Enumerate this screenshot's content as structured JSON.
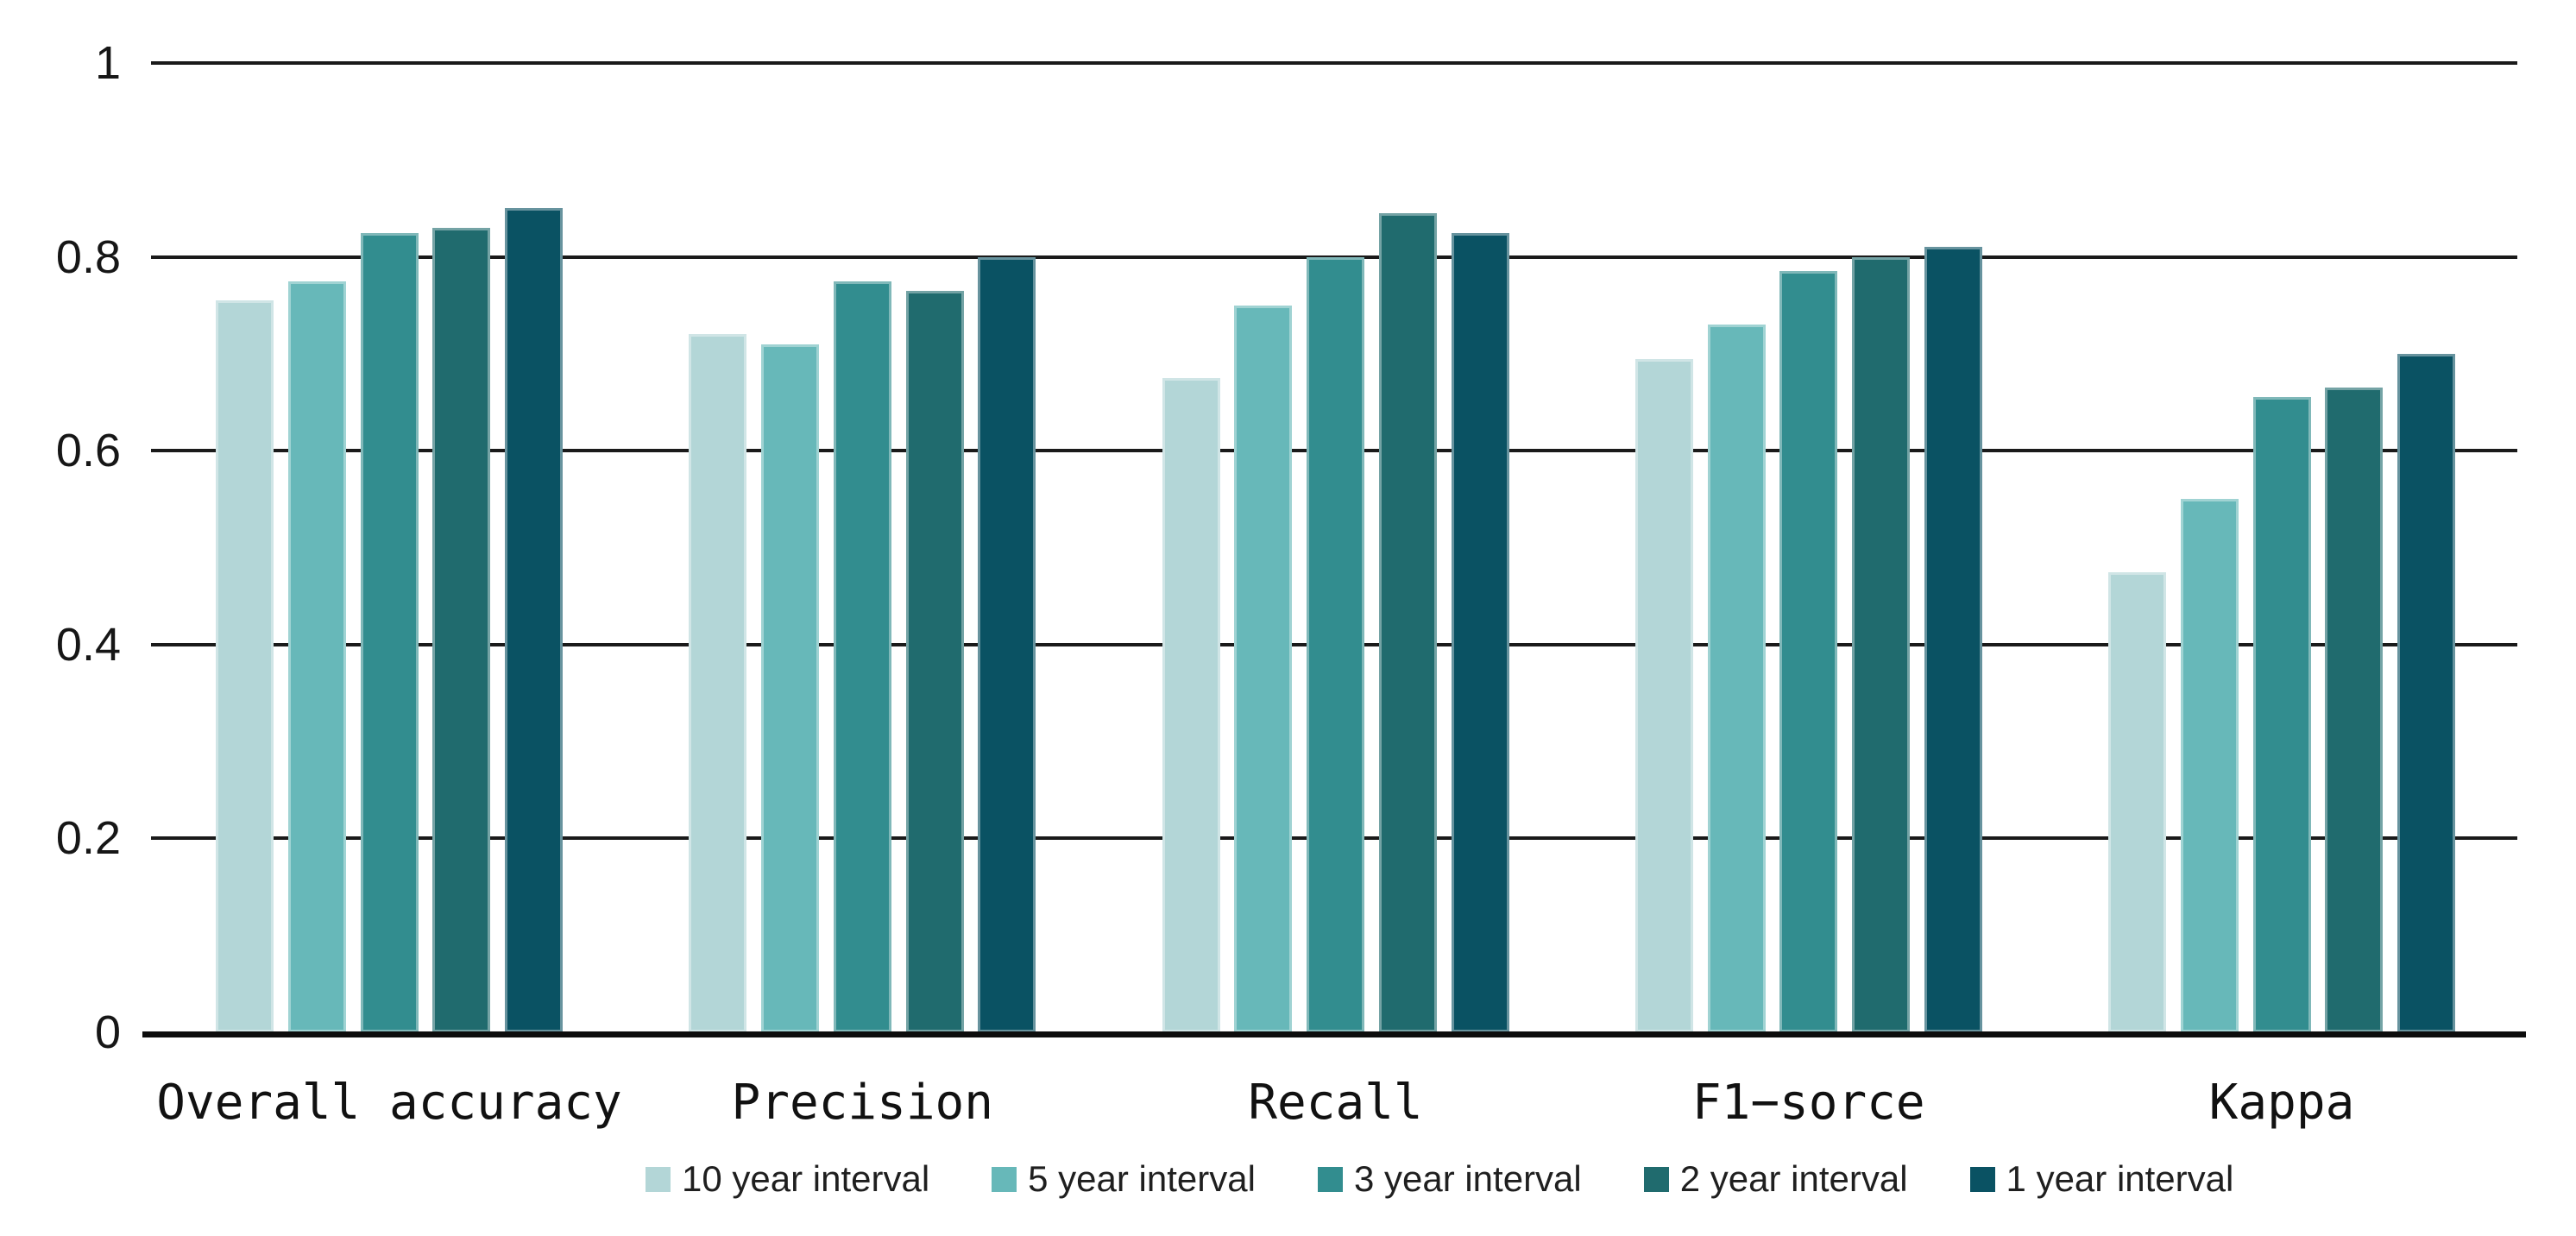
{
  "chart_data": {
    "type": "bar",
    "categories": [
      "Overall accuracy",
      "Precision",
      "Recall",
      "F1−sorce",
      "Kappa"
    ],
    "series": [
      {
        "name": "10 year interval",
        "color": "#b3d6d7",
        "values": [
          0.755,
          0.72,
          0.675,
          0.695,
          0.475
        ]
      },
      {
        "name": "5 year interval",
        "color": "#67b8b9",
        "values": [
          0.775,
          0.71,
          0.75,
          0.73,
          0.55
        ]
      },
      {
        "name": "3 year interval",
        "color": "#328d8f",
        "values": [
          0.825,
          0.775,
          0.8,
          0.785,
          0.655
        ]
      },
      {
        "name": "2 year interval",
        "color": "#206b6e",
        "values": [
          0.83,
          0.765,
          0.845,
          0.8,
          0.665
        ]
      },
      {
        "name": "1 year interval",
        "color": "#0a5263",
        "values": [
          0.85,
          0.8,
          0.825,
          0.81,
          0.7
        ]
      }
    ],
    "title": "",
    "xlabel": "",
    "ylabel": "",
    "ylim": [
      0,
      1
    ],
    "yticks": [
      {
        "label": "1",
        "value": 1.0
      },
      {
        "label": "0.8",
        "value": 0.8
      },
      {
        "label": "0.6",
        "value": 0.6
      },
      {
        "label": "0.4",
        "value": 0.4
      },
      {
        "label": "0.2",
        "value": 0.2
      },
      {
        "label": "0",
        "value": 0.0
      }
    ],
    "grid": true,
    "gridline_color": "#1a1a1a",
    "axis_line_color": "#0d0d0d",
    "legend_position": "bottom",
    "background_color": "#ffffff"
  }
}
